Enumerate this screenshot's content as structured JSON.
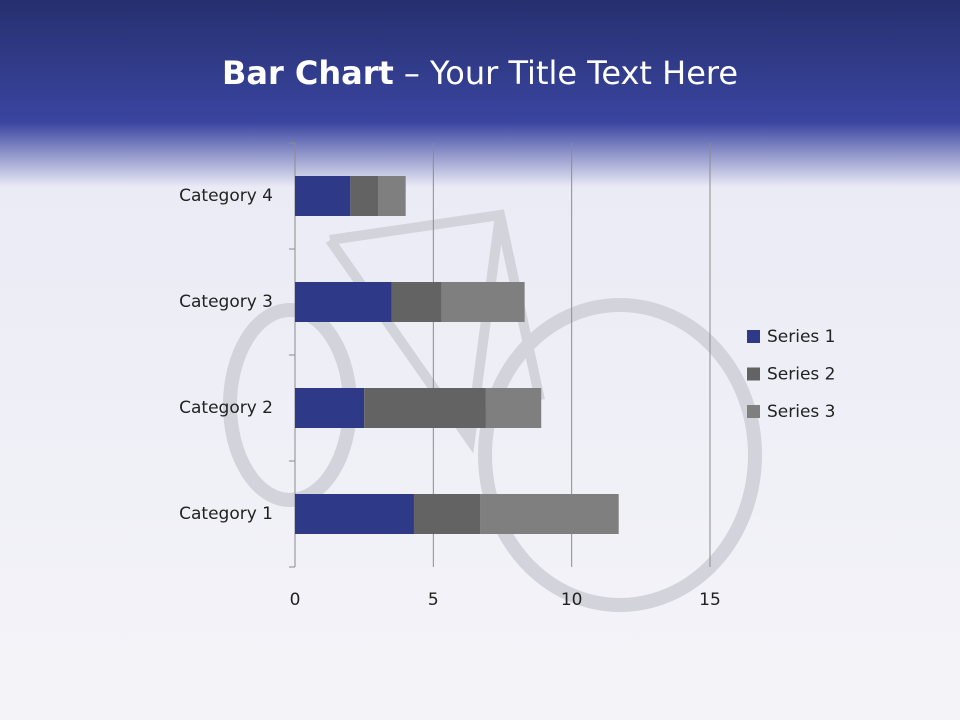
{
  "chart_data": {
    "type": "bar",
    "horizontal": true,
    "stacked": true,
    "title": {
      "bold": "Bar Chart",
      "text": "– Your Title Text Here"
    },
    "categories": [
      "Category 1",
      "Category 2",
      "Category 3",
      "Category 4"
    ],
    "series": [
      {
        "name": "Series 1",
        "color": "#2e3a87",
        "values": [
          4.3,
          2.5,
          3.5,
          2
        ]
      },
      {
        "name": "Series 2",
        "color": "#636363",
        "values": [
          2.4,
          4.4,
          1.8,
          1
        ]
      },
      {
        "name": "Series 3",
        "color": "#7f7f7f",
        "values": [
          5,
          2,
          3,
          1
        ]
      }
    ],
    "xlim": [
      0,
      15
    ],
    "xticks": [
      0,
      5,
      10,
      15
    ],
    "grid": true,
    "legend": "right"
  }
}
